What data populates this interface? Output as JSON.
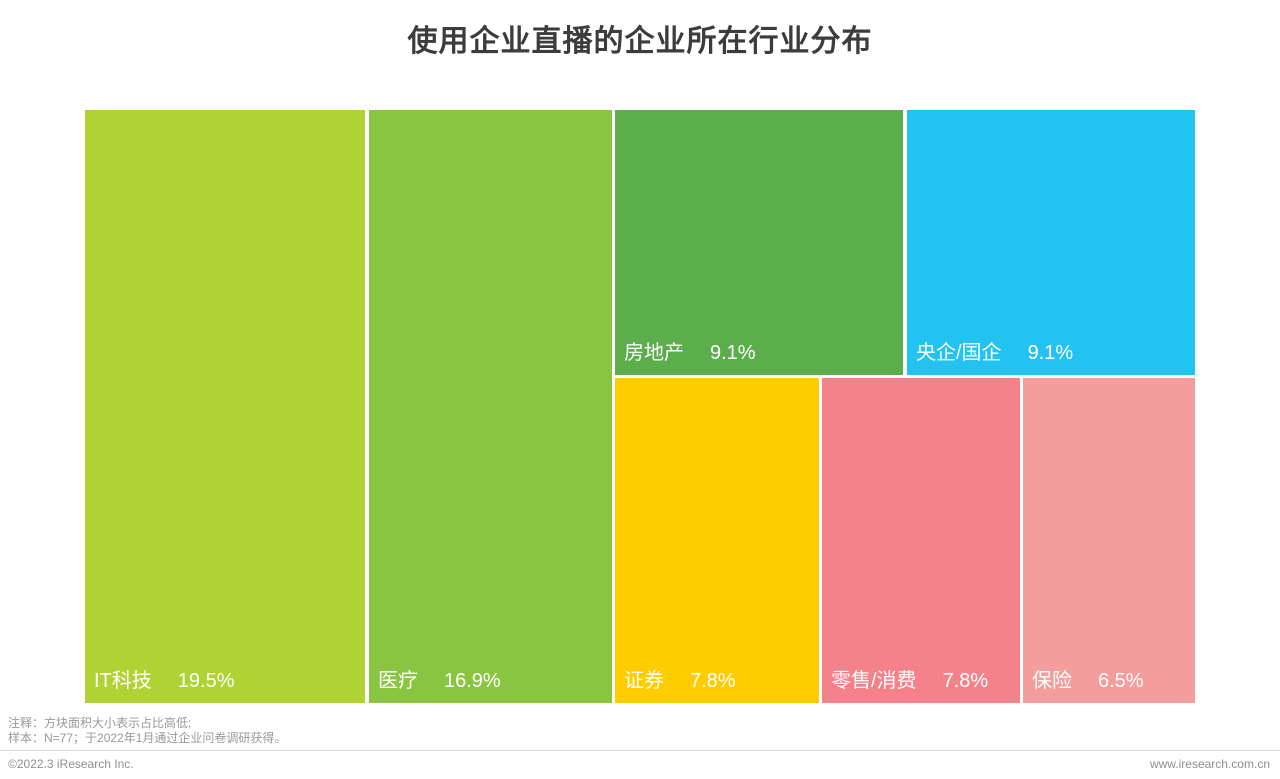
{
  "title": "使用企业直播的企业所在行业分布",
  "chart_data": {
    "type": "treemap",
    "title": "使用企业直播的企业所在行业分布",
    "note": "方块面积大小表示占比高低",
    "unit": "%",
    "items": [
      {
        "name": "IT科技",
        "value": 19.5,
        "pct": "19.5%",
        "color": "#b1d235"
      },
      {
        "name": "医疗",
        "value": 16.9,
        "pct": "16.9%",
        "color": "#89c541"
      },
      {
        "name": "房地产",
        "value": 9.1,
        "pct": "9.1%",
        "color": "#5cad4b"
      },
      {
        "name": "央企/国企",
        "value": 9.1,
        "pct": "9.1%",
        "color": "#22c3f0"
      },
      {
        "name": "证券",
        "value": 7.8,
        "pct": "7.8%",
        "color": "#ffcc00"
      },
      {
        "name": "零售/消费",
        "value": 7.8,
        "pct": "7.8%",
        "color": "#f5818a"
      },
      {
        "name": "保险",
        "value": 6.5,
        "pct": "6.5%",
        "color": "#f59d9d"
      }
    ]
  },
  "footnotes": {
    "line1": "注释：方块面积大小表示占比高低;",
    "line2": "样本：N=77；于2022年1月通过企业问卷调研获得。"
  },
  "footer": {
    "copyright": "©2022.3 iResearch Inc.",
    "website": "www.iresearch.com.cn"
  }
}
